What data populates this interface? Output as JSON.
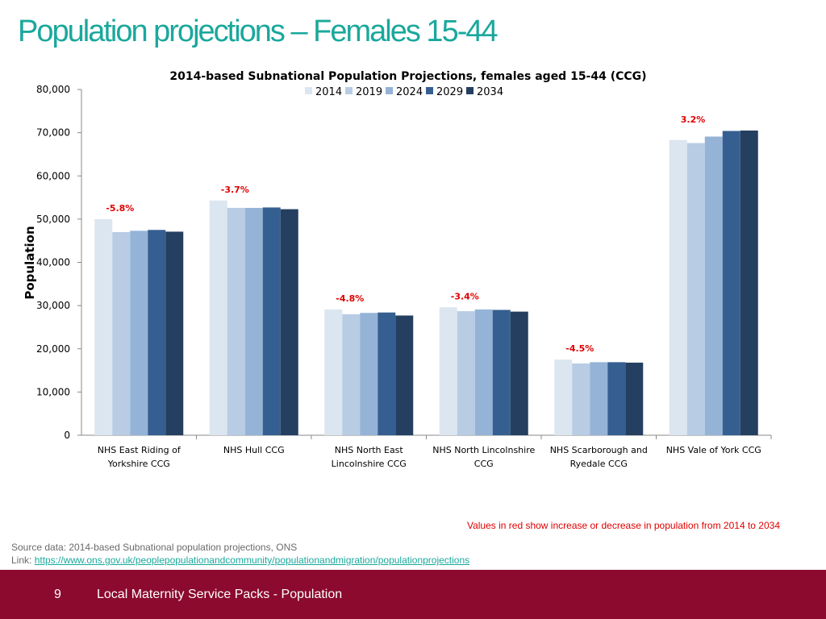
{
  "slide": {
    "title": "Population projections – Females 15-44",
    "note": "Values in red show increase or decrease in population from 2014 to 2034",
    "source_line": "Source data: 2014-based Subnational population projections, ONS",
    "link_label": "Link: ",
    "link_url": "https://www.ons.gov.uk/peoplepopulationandcommunity/populationandmigration/populationprojections",
    "page_number": "9",
    "footer_title": "Local Maternity Service Packs - Population"
  },
  "colors": {
    "title": "#1aa89c",
    "footer": "#8b0a2e",
    "change_label": "#e00000",
    "series": [
      "#dce6f1",
      "#b8cce4",
      "#95b3d7",
      "#365f91",
      "#243f60"
    ]
  },
  "chart_data": {
    "type": "bar",
    "title": "2014-based Subnational Population Projections, females aged 15-44 (CCG)",
    "xlabel": "",
    "ylabel": "Population",
    "ylim": [
      0,
      80000
    ],
    "yticks": [
      0,
      10000,
      20000,
      30000,
      40000,
      50000,
      60000,
      70000,
      80000
    ],
    "ytick_labels": [
      "0",
      "10,000",
      "20,000",
      "30,000",
      "40,000",
      "50,000",
      "60,000",
      "70,000",
      "80,000"
    ],
    "legend_position": "top",
    "categories": [
      [
        "NHS East Riding of",
        "Yorkshire CCG"
      ],
      [
        "NHS Hull CCG"
      ],
      [
        "NHS North East",
        "Lincolnshire CCG"
      ],
      [
        "NHS North Lincolnshire",
        "CCG"
      ],
      [
        "NHS Scarborough and",
        "Ryedale CCG"
      ],
      [
        "NHS Vale of York CCG"
      ]
    ],
    "series": [
      {
        "name": "2014",
        "values": [
          50000,
          54300,
          29100,
          29600,
          17500,
          68300
        ]
      },
      {
        "name": "2019",
        "values": [
          47000,
          52600,
          28000,
          28700,
          16600,
          67600
        ]
      },
      {
        "name": "2024",
        "values": [
          47300,
          52600,
          28300,
          29100,
          16900,
          69100
        ]
      },
      {
        "name": "2029",
        "values": [
          47500,
          52700,
          28400,
          29000,
          16900,
          70400
        ]
      },
      {
        "name": "2034",
        "values": [
          47100,
          52300,
          27700,
          28600,
          16800,
          70500
        ]
      }
    ],
    "change_labels": [
      "-5.8%",
      "-3.7%",
      "-4.8%",
      "-3.4%",
      "-4.5%",
      "3.2%"
    ]
  }
}
